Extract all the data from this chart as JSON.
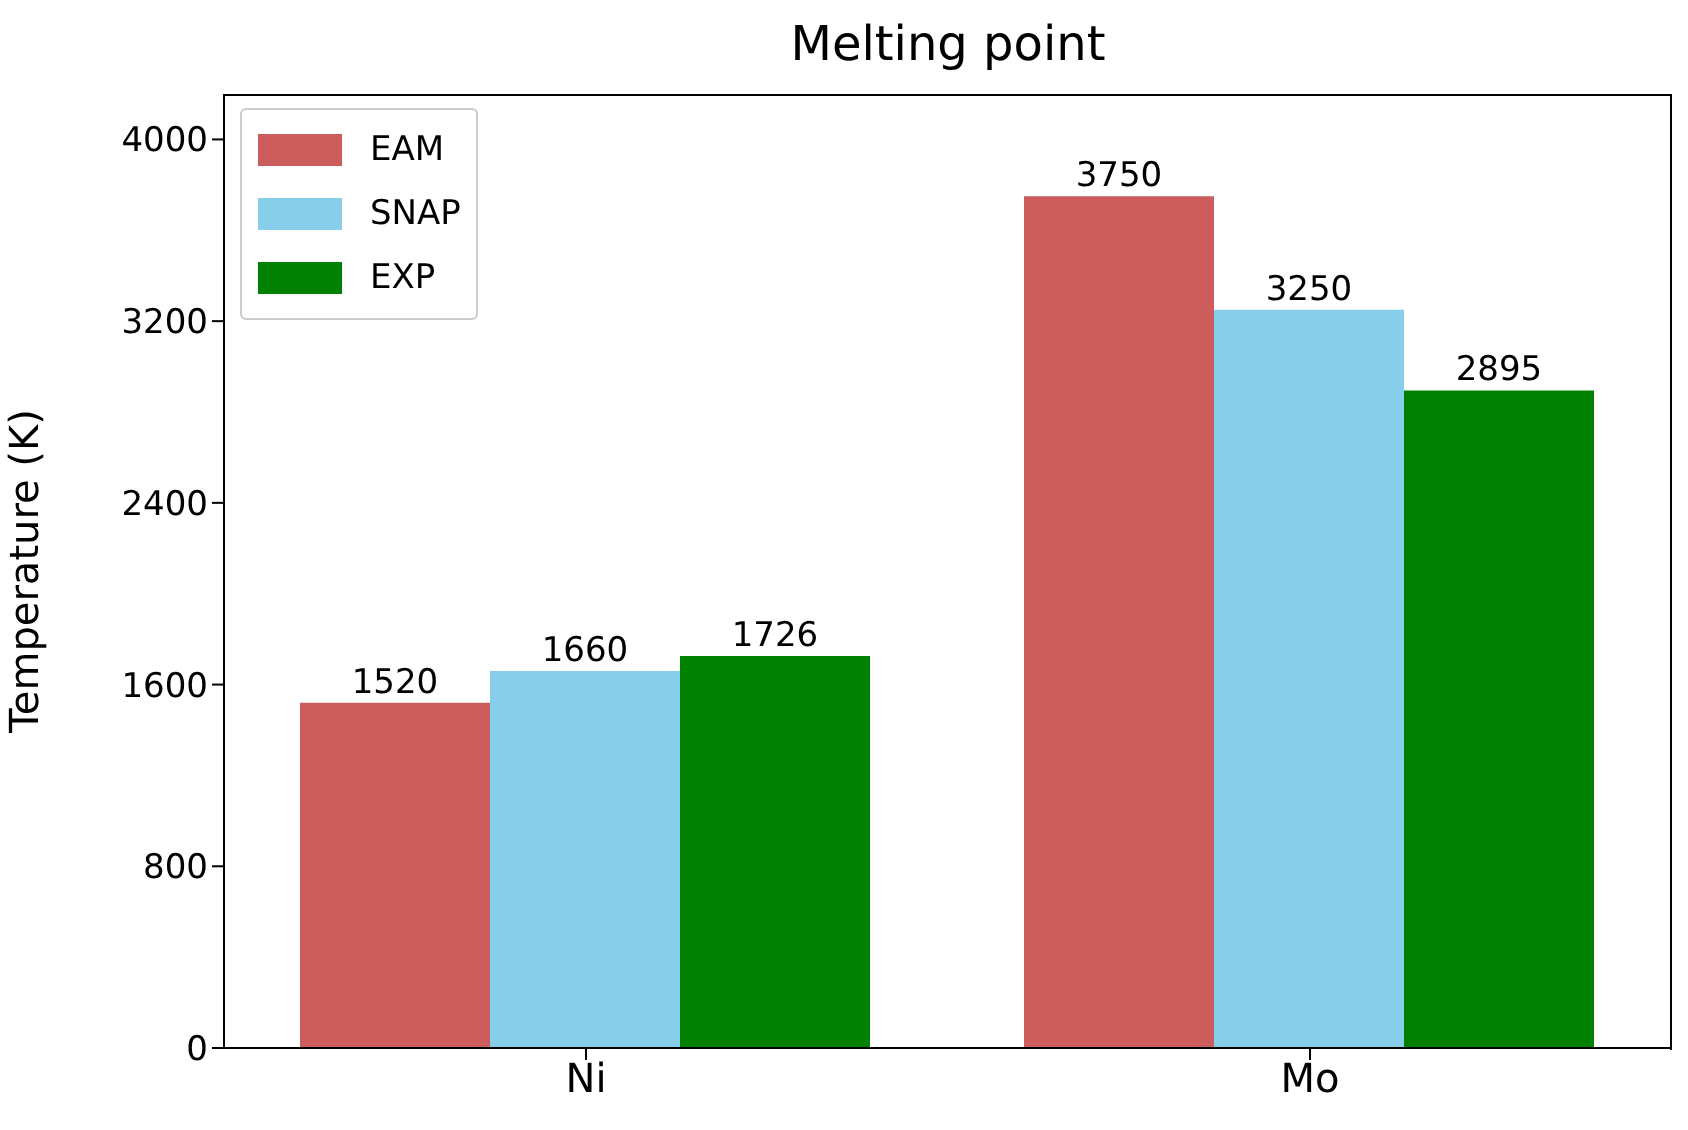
{
  "chart_data": {
    "type": "bar",
    "title": "Melting point",
    "ylabel": "Temperature (K)",
    "categories": [
      "Ni",
      "Mo"
    ],
    "series": [
      {
        "name": "EAM",
        "color": "#cd5c5c",
        "values": [
          1520,
          3750
        ]
      },
      {
        "name": "SNAP",
        "color": "#87ceeb",
        "values": [
          1660,
          3250
        ]
      },
      {
        "name": "EXP",
        "color": "#008000",
        "values": [
          1726,
          2895
        ]
      }
    ],
    "ylim": [
      0,
      4200
    ],
    "yticks": [
      0,
      800,
      1600,
      2400,
      3200,
      4000
    ],
    "data_labels": true,
    "grid": false,
    "legend": "top left"
  }
}
